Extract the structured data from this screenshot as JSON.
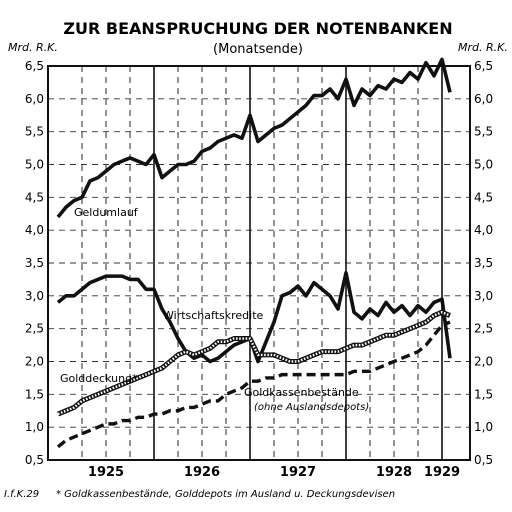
{
  "chart_data": {
    "type": "line",
    "title": "ZUR BEANSPRUCHUNG DER NOTENBANKEN",
    "subtitle": "(Monatsende)",
    "y_unit_left": "Mrd. R.K.",
    "y_unit_right": "Mrd. R.K.",
    "ylim": [
      0.5,
      6.5
    ],
    "y_ticks": [
      "0,5",
      "1,0",
      "1,5",
      "2,0",
      "2,5",
      "3,0",
      "3,5",
      "4,0",
      "4,5",
      "5,0",
      "5,5",
      "6,0",
      "6,5"
    ],
    "grid": true,
    "x_labels": [
      "1925",
      "1926",
      "1927",
      "1928",
      "1929"
    ],
    "x": [
      "1924-12",
      "1925-01",
      "1925-02",
      "1925-03",
      "1925-04",
      "1925-05",
      "1925-06",
      "1925-07",
      "1925-08",
      "1925-09",
      "1925-10",
      "1925-11",
      "1925-12",
      "1926-01",
      "1926-02",
      "1926-03",
      "1926-04",
      "1926-05",
      "1926-06",
      "1926-07",
      "1926-08",
      "1926-09",
      "1926-10",
      "1926-11",
      "1926-12",
      "1927-01",
      "1927-02",
      "1927-03",
      "1927-04",
      "1927-05",
      "1927-06",
      "1927-07",
      "1927-08",
      "1927-09",
      "1927-10",
      "1927-11",
      "1927-12",
      "1928-01",
      "1928-02",
      "1928-03",
      "1928-04",
      "1928-05",
      "1928-06",
      "1928-07",
      "1928-08",
      "1928-09",
      "1928-10",
      "1928-11",
      "1928-12",
      "1929-01"
    ],
    "series": [
      {
        "name": "Geldumlauf",
        "style": "solid-bold",
        "values": [
          4.2,
          4.35,
          4.45,
          4.5,
          4.75,
          4.8,
          4.9,
          5.0,
          5.05,
          5.1,
          5.05,
          5.0,
          5.15,
          4.8,
          4.9,
          5.0,
          5.0,
          5.05,
          5.2,
          5.25,
          5.35,
          5.4,
          5.45,
          5.4,
          5.75,
          5.35,
          5.45,
          5.55,
          5.6,
          5.7,
          5.8,
          5.9,
          6.05,
          6.05,
          6.15,
          6.0,
          6.3,
          5.9,
          6.15,
          6.05,
          6.2,
          6.15,
          6.3,
          6.25,
          6.4,
          6.3,
          6.55,
          6.35,
          6.6,
          6.1
        ]
      },
      {
        "name": "Wirtschaftskredite",
        "style": "solid-bold",
        "values": [
          2.9,
          3.0,
          3.0,
          3.1,
          3.2,
          3.25,
          3.3,
          3.3,
          3.3,
          3.25,
          3.25,
          3.1,
          3.1,
          2.8,
          2.6,
          2.35,
          2.15,
          2.05,
          2.1,
          2.0,
          2.05,
          2.15,
          2.25,
          2.3,
          2.35,
          2.0,
          2.3,
          2.6,
          3.0,
          3.05,
          3.15,
          3.0,
          3.2,
          3.1,
          3.0,
          2.8,
          3.35,
          2.75,
          2.65,
          2.8,
          2.7,
          2.9,
          2.75,
          2.85,
          2.7,
          2.85,
          2.75,
          2.9,
          2.95,
          2.05
        ]
      },
      {
        "name": "Golddeckung*",
        "style": "hatched",
        "values": [
          1.2,
          1.25,
          1.3,
          1.4,
          1.45,
          1.5,
          1.55,
          1.6,
          1.65,
          1.7,
          1.75,
          1.8,
          1.85,
          1.9,
          2.0,
          2.1,
          2.15,
          2.1,
          2.15,
          2.2,
          2.3,
          2.3,
          2.35,
          2.35,
          2.35,
          2.1,
          2.1,
          2.1,
          2.05,
          2.0,
          2.0,
          2.05,
          2.1,
          2.15,
          2.15,
          2.15,
          2.2,
          2.25,
          2.25,
          2.3,
          2.35,
          2.4,
          2.4,
          2.45,
          2.5,
          2.55,
          2.6,
          2.7,
          2.75,
          2.7
        ]
      },
      {
        "name": "Goldkassenbestände",
        "style": "dashed",
        "values": [
          0.7,
          0.8,
          0.85,
          0.9,
          0.95,
          1.0,
          1.05,
          1.05,
          1.1,
          1.1,
          1.15,
          1.15,
          1.2,
          1.2,
          1.25,
          1.25,
          1.3,
          1.3,
          1.35,
          1.4,
          1.4,
          1.5,
          1.55,
          1.6,
          1.7,
          1.7,
          1.75,
          1.75,
          1.8,
          1.8,
          1.8,
          1.8,
          1.8,
          1.8,
          1.8,
          1.8,
          1.8,
          1.85,
          1.85,
          1.85,
          1.9,
          1.95,
          2.0,
          2.05,
          2.1,
          2.15,
          2.25,
          2.4,
          2.55,
          2.6
        ]
      }
    ],
    "annotations": [
      {
        "series": "Geldumlauf",
        "text": "Geldumlauf"
      },
      {
        "series": "Wirtschaftskredite",
        "text": "Wirtschaftskredite"
      },
      {
        "series": "Golddeckung*",
        "text": "Golddeckung*"
      },
      {
        "series": "Goldkassenbestände",
        "text": "Goldkassenbestände"
      },
      {
        "series": "Goldkassenbestände",
        "text": "(ohne Auslandsdepots)"
      }
    ],
    "source": "I.f.K.29",
    "footnote": "* Goldkassenbestände, Golddepots im Ausland u. Deckungsdevisen"
  }
}
